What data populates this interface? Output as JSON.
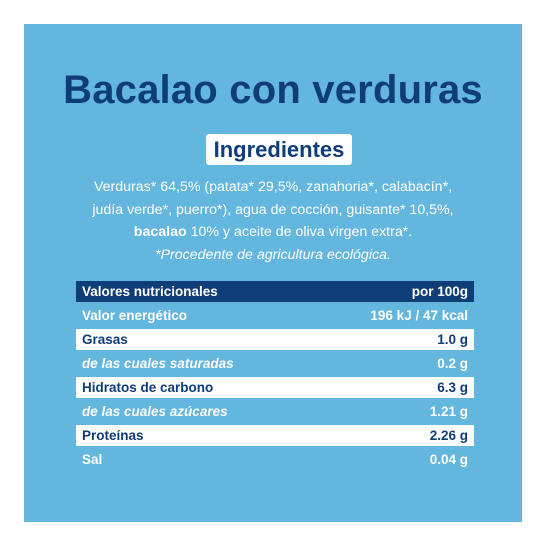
{
  "title": "Bacalao con verduras",
  "ingredients_heading": "Ingredientes",
  "ingredients": {
    "line1": "Verduras* 64,5% (patata* 29,5%, zanahoria*, calabacín*,",
    "line2": "judía verde*, puerro*), agua de cocción, guisante* 10,5%,",
    "line3_bold": "bacalao",
    "line3_rest": " 10% y aceite de oliva virgen extra*.",
    "note": "*Procedente de agricultura ecológica."
  },
  "nutrition": {
    "header": {
      "label": "Valores nutricionales",
      "value": "por 100g"
    },
    "rows": [
      {
        "label": "Valor energético",
        "value": "196 kJ / 47 kcal"
      },
      {
        "label": "Grasas",
        "value": "1.0 g"
      },
      {
        "label": "de las cuales saturadas",
        "value": "0.2 g"
      },
      {
        "label": "Hidratos de carbono",
        "value": "6.3 g"
      },
      {
        "label": "de las cuales azúcares",
        "value": "1.21 g"
      },
      {
        "label": "Proteínas",
        "value": "2.26 g"
      },
      {
        "label": "Sal",
        "value": "0.04 g"
      }
    ]
  },
  "colors": {
    "panel_background": "#63b6de",
    "dark_blue": "#0f3d78",
    "white": "#ffffff"
  }
}
